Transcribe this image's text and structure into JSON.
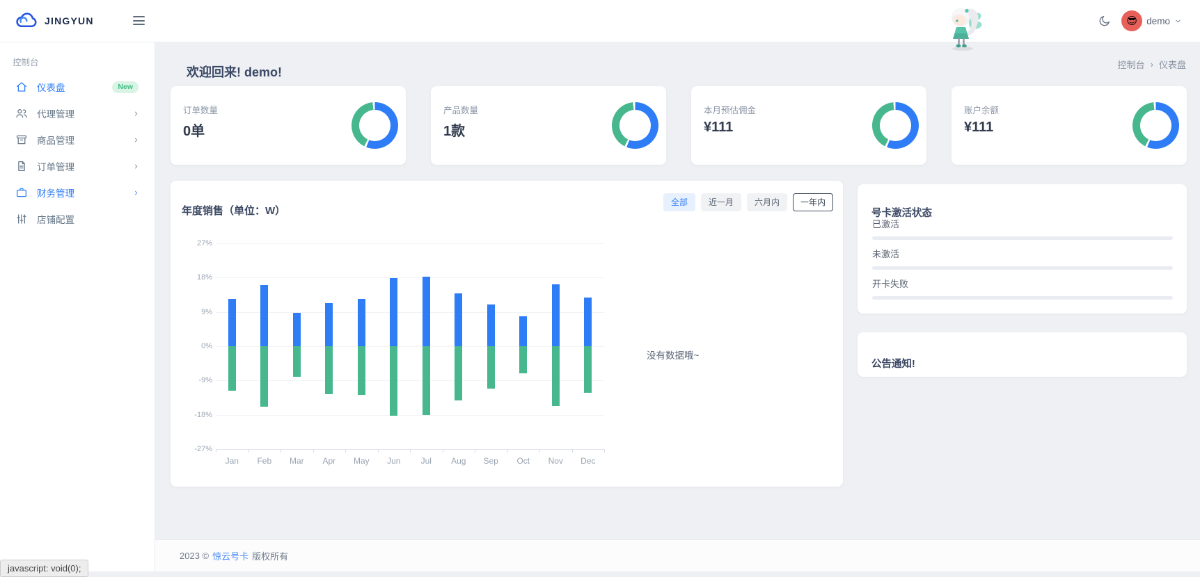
{
  "navbar": {
    "brand": "JINGYUN",
    "menu_icon": "hamburger-icon",
    "theme_icon": "moon-icon",
    "user": {
      "name": "demo",
      "avatar_emoji": "😎"
    }
  },
  "sidebar": {
    "section_label": "控制台",
    "items": [
      {
        "label": "仪表盘",
        "icon": "home-icon",
        "badge": "New",
        "active": true
      },
      {
        "label": "代理管理",
        "icon": "users-icon",
        "chevron": true
      },
      {
        "label": "商品管理",
        "icon": "box-icon",
        "chevron": true
      },
      {
        "label": "订单管理",
        "icon": "file-icon",
        "chevron": true
      },
      {
        "label": "财务管理",
        "icon": "briefcase-icon",
        "chevron": true,
        "highlight": true
      },
      {
        "label": "店铺配置",
        "icon": "sliders-icon"
      }
    ]
  },
  "page": {
    "welcome": "欢迎回来! demo!",
    "breadcrumb": {
      "items": [
        "控制台",
        "仪表盘"
      ],
      "separator": "›"
    }
  },
  "stats": [
    {
      "label": "订单数量",
      "value": "0单"
    },
    {
      "label": "产品数量",
      "value": "1款"
    },
    {
      "label": "本月预估佣金",
      "value": "¥111"
    },
    {
      "label": "账户余额",
      "value": "¥111"
    }
  ],
  "donut": {
    "blue_pct": 56,
    "gap_pct": 1.5,
    "green_end_pct": 98.5
  },
  "sales_card": {
    "title": "年度销售（单位：W）",
    "filters": [
      {
        "label": "全部",
        "style": "primary"
      },
      {
        "label": "近一月",
        "style": "plain"
      },
      {
        "label": "六月内",
        "style": "plain"
      },
      {
        "label": "一年内",
        "style": "outline"
      }
    ],
    "empty_text": "没有数据哦~"
  },
  "chart_data": {
    "type": "bar",
    "title": "年度销售（单位：W）",
    "categories": [
      "Jan",
      "Feb",
      "Mar",
      "Apr",
      "May",
      "Jun",
      "Jul",
      "Aug",
      "Sep",
      "Oct",
      "Nov",
      "Dec"
    ],
    "series": [
      {
        "name": "positive",
        "color": "#2E7CF6",
        "values": [
          12.4,
          16.0,
          8.7,
          11.3,
          12.5,
          17.9,
          18.2,
          13.8,
          10.9,
          7.8,
          16.2,
          12.7
        ]
      },
      {
        "name": "negative",
        "color": "#47B78E",
        "values": [
          -11.6,
          -15.8,
          -8.0,
          -12.5,
          -12.7,
          -18.2,
          -18.0,
          -14.3,
          -11.2,
          -7.1,
          -15.6,
          -12.2
        ]
      }
    ],
    "ylim": [
      -27,
      27
    ],
    "yticks": [
      27,
      18,
      9,
      0,
      -9,
      -18,
      -27
    ],
    "ytick_suffix": "%",
    "grid": true,
    "legend": "none"
  },
  "activation_card": {
    "title": "号卡激活状态",
    "rows": [
      {
        "label": "已激活",
        "percent": 0
      },
      {
        "label": "未激活",
        "percent": 0
      },
      {
        "label": "开卡失败",
        "percent": 0
      }
    ]
  },
  "notice_card": {
    "title": "公告通知!"
  },
  "footer": {
    "prefix": "2023 ©",
    "brand": "惊云号卡",
    "suffix": "版权所有"
  },
  "status_bar": {
    "text": "javascript: void(0);"
  },
  "colors": {
    "primary": "#2E7CF6",
    "green": "#47B78E",
    "heading": "#3B4863",
    "muted": "#8A94A6",
    "badge_bg": "#D9F3E5",
    "badge_text": "#3FBD86",
    "progress_track": "#E9ECF1"
  }
}
